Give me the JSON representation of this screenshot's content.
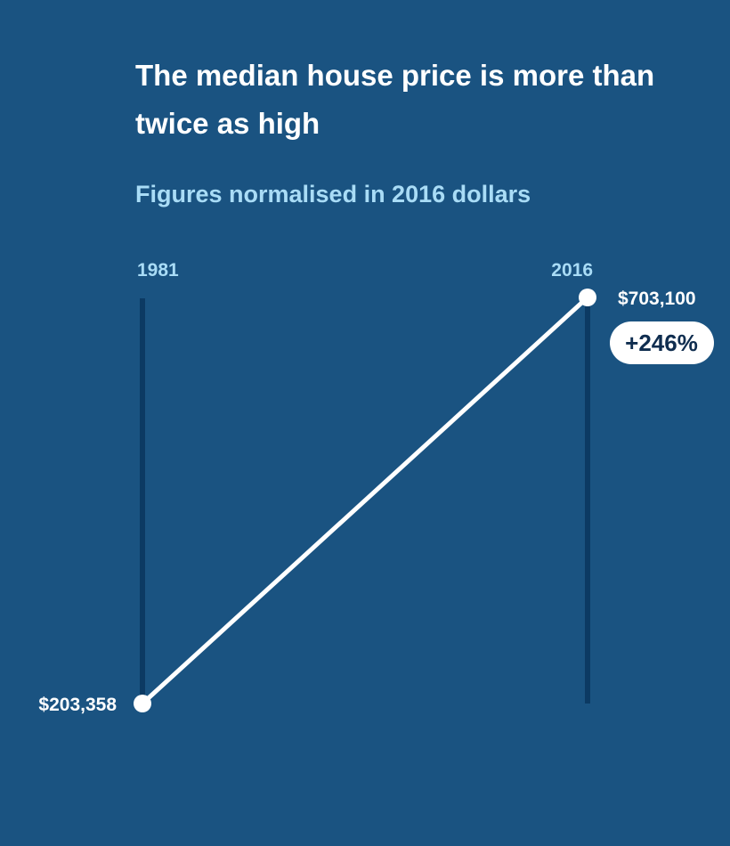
{
  "chart_data": {
    "type": "line",
    "title": "The median house price is more than twice as high",
    "subtitle": "Figures normalised in 2016 dollars",
    "categories": [
      "1981",
      "2016"
    ],
    "values": [
      203358,
      703100
    ],
    "value_labels": [
      "$203,358",
      "$703,100"
    ],
    "change_label": "+246%",
    "colors": {
      "background": "#1a5381",
      "axis": "#0c3a63",
      "line": "#ffffff",
      "year_label": "#a9dcf6",
      "subtitle": "#a9dcf6",
      "badge_fill": "#ffffff",
      "badge_text": "#0f2d4f"
    },
    "grid": false,
    "legend": "none"
  }
}
